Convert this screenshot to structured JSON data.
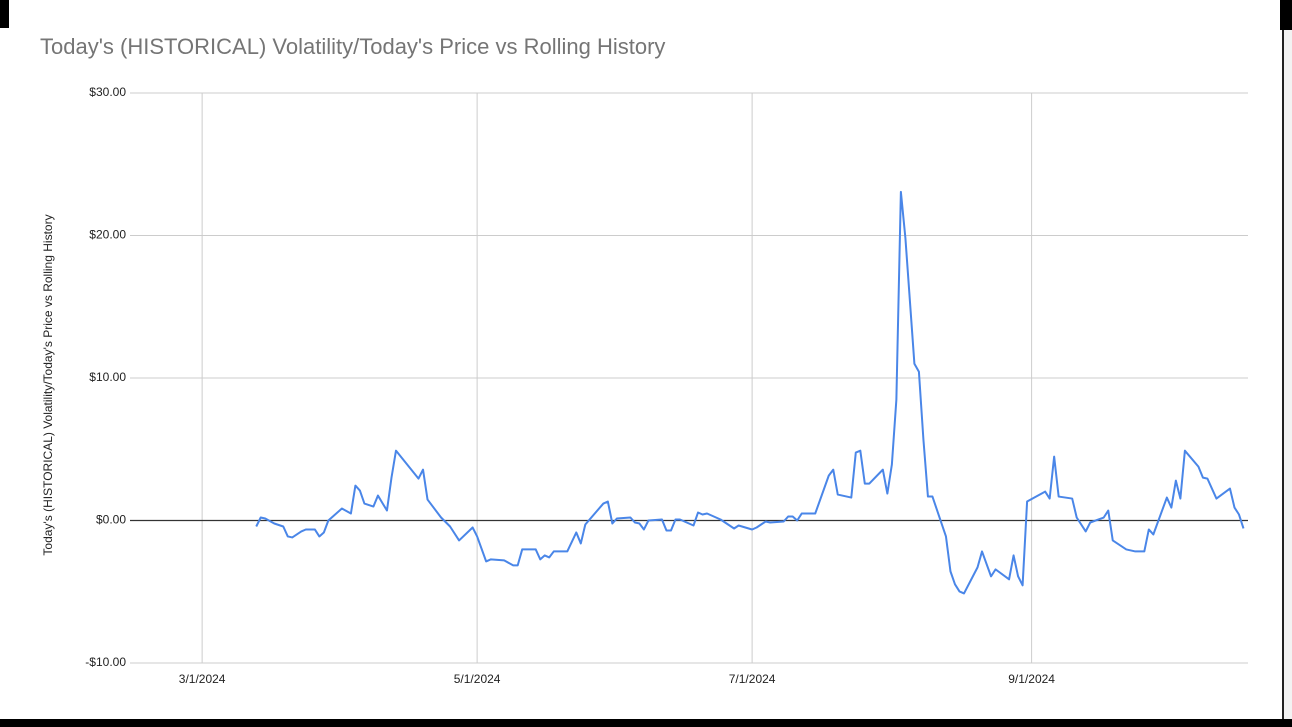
{
  "chart_data": {
    "type": "line",
    "title": "Today's (HISTORICAL) Volatility/Today's Price vs Rolling History",
    "y_label": "Today's (HISTORICAL) Volatility/Today's Price vs Rolling History",
    "xlim": [
      "2024-02-14",
      "2024-10-19"
    ],
    "xticks": [
      {
        "value": "2024-03-01",
        "label": "3/1/2024"
      },
      {
        "value": "2024-05-01",
        "label": "5/1/2024"
      },
      {
        "value": "2024-07-01",
        "label": "7/1/2024"
      },
      {
        "value": "2024-09-01",
        "label": "9/1/2024"
      }
    ],
    "ylim": [
      -10,
      30
    ],
    "yticks": [
      {
        "value": -10,
        "label": "-$10.00"
      },
      {
        "value": 0,
        "label": "$0.00"
      },
      {
        "value": 10,
        "label": "$10.00"
      },
      {
        "value": 20,
        "label": "$20.00"
      },
      {
        "value": 30,
        "label": "$30.00"
      }
    ],
    "grid": true,
    "x": [
      "2024-03-13",
      "2024-03-14",
      "2024-03-15",
      "2024-03-17",
      "2024-03-19",
      "2024-03-20",
      "2024-03-21",
      "2024-03-23",
      "2024-03-24",
      "2024-03-26",
      "2024-03-27",
      "2024-03-28",
      "2024-03-29",
      "2024-04-01",
      "2024-04-03",
      "2024-04-04",
      "2024-04-05",
      "2024-04-06",
      "2024-04-08",
      "2024-04-09",
      "2024-04-11",
      "2024-04-12",
      "2024-04-13",
      "2024-04-18",
      "2024-04-19",
      "2024-04-20",
      "2024-04-23",
      "2024-04-25",
      "2024-04-27",
      "2024-04-30",
      "2024-05-01",
      "2024-05-03",
      "2024-05-04",
      "2024-05-07",
      "2024-05-09",
      "2024-05-10",
      "2024-05-11",
      "2024-05-14",
      "2024-05-15",
      "2024-05-16",
      "2024-05-17",
      "2024-05-18",
      "2024-05-21",
      "2024-05-23",
      "2024-05-24",
      "2024-05-25",
      "2024-05-29",
      "2024-05-30",
      "2024-05-31",
      "2024-06-01",
      "2024-06-04",
      "2024-06-05",
      "2024-06-06",
      "2024-06-07",
      "2024-06-08",
      "2024-06-11",
      "2024-06-12",
      "2024-06-13",
      "2024-06-14",
      "2024-06-15",
      "2024-06-18",
      "2024-06-19",
      "2024-06-20",
      "2024-06-21",
      "2024-06-24",
      "2024-06-27",
      "2024-06-28",
      "2024-07-01",
      "2024-07-02",
      "2024-07-04",
      "2024-07-05",
      "2024-07-08",
      "2024-07-09",
      "2024-07-10",
      "2024-07-11",
      "2024-07-12",
      "2024-07-15",
      "2024-07-18",
      "2024-07-19",
      "2024-07-20",
      "2024-07-23",
      "2024-07-24",
      "2024-07-25",
      "2024-07-26",
      "2024-07-27",
      "2024-07-30",
      "2024-07-31",
      "2024-08-01",
      "2024-08-02",
      "2024-08-03",
      "2024-08-04",
      "2024-08-06",
      "2024-08-07",
      "2024-08-08",
      "2024-08-09",
      "2024-08-10",
      "2024-08-13",
      "2024-08-14",
      "2024-08-15",
      "2024-08-16",
      "2024-08-17",
      "2024-08-20",
      "2024-08-21",
      "2024-08-23",
      "2024-08-24",
      "2024-08-27",
      "2024-08-28",
      "2024-08-29",
      "2024-08-30",
      "2024-08-31",
      "2024-09-04",
      "2024-09-05",
      "2024-09-06",
      "2024-09-07",
      "2024-09-10",
      "2024-09-11",
      "2024-09-13",
      "2024-09-14",
      "2024-09-17",
      "2024-09-18",
      "2024-09-19",
      "2024-09-22",
      "2024-09-24",
      "2024-09-26",
      "2024-09-27",
      "2024-09-28",
      "2024-10-01",
      "2024-10-02",
      "2024-10-03",
      "2024-10-04",
      "2024-10-05",
      "2024-10-08",
      "2024-10-09",
      "2024-10-10",
      "2024-10-12",
      "2024-10-15",
      "2024-10-16",
      "2024-10-17",
      "2024-10-18"
    ],
    "series": [
      {
        "name": "Today's (HISTORICAL) Volatility/Today's Price vs Rolling History",
        "color": "#4a86e8",
        "values": [
          -0.42,
          0.21,
          0.14,
          -0.21,
          -0.42,
          -1.12,
          -1.19,
          -0.77,
          -0.63,
          -0.63,
          -1.12,
          -0.84,
          0,
          0.84,
          0.49,
          2.45,
          2.1,
          1.19,
          0.98,
          1.75,
          0.7,
          3.0,
          4.9,
          2.94,
          3.57,
          1.47,
          0.21,
          -0.42,
          -1.4,
          -0.49,
          -1.12,
          -2.87,
          -2.73,
          -2.8,
          -3.15,
          -3.15,
          -2.03,
          -2.03,
          -2.73,
          -2.45,
          -2.59,
          -2.17,
          -2.17,
          -0.84,
          -1.61,
          -0.28,
          1.19,
          1.33,
          -0.21,
          0.14,
          0.21,
          -0.14,
          -0.21,
          -0.63,
          0,
          0.07,
          -0.7,
          -0.7,
          0.07,
          0.07,
          -0.35,
          0.56,
          0.42,
          0.49,
          0.07,
          -0.56,
          -0.35,
          -0.63,
          -0.49,
          -0.07,
          -0.14,
          -0.07,
          0.28,
          0.28,
          0,
          0.49,
          0.49,
          3.15,
          3.57,
          1.82,
          1.61,
          4.77,
          4.9,
          2.59,
          2.59,
          3.57,
          1.89,
          3.92,
          8.48,
          23.06,
          19.83,
          11.0,
          10.44,
          5.68,
          1.68,
          1.68,
          -1.12,
          -3.57,
          -4.48,
          -4.98,
          -5.12,
          -3.29,
          -2.17,
          -3.92,
          -3.43,
          -4.13,
          -2.45,
          -3.92,
          -4.55,
          1.33,
          2.03,
          1.54,
          4.48,
          1.68,
          1.54,
          0.21,
          -0.77,
          -0.14,
          0.21,
          0.7,
          -1.4,
          -2.03,
          -2.17,
          -2.17,
          -0.63,
          -0.98,
          1.61,
          0.91,
          2.8,
          1.54,
          4.9,
          3.78,
          3.01,
          2.94,
          1.54,
          2.24,
          0.91,
          0.42,
          -0.56
        ]
      }
    ]
  }
}
